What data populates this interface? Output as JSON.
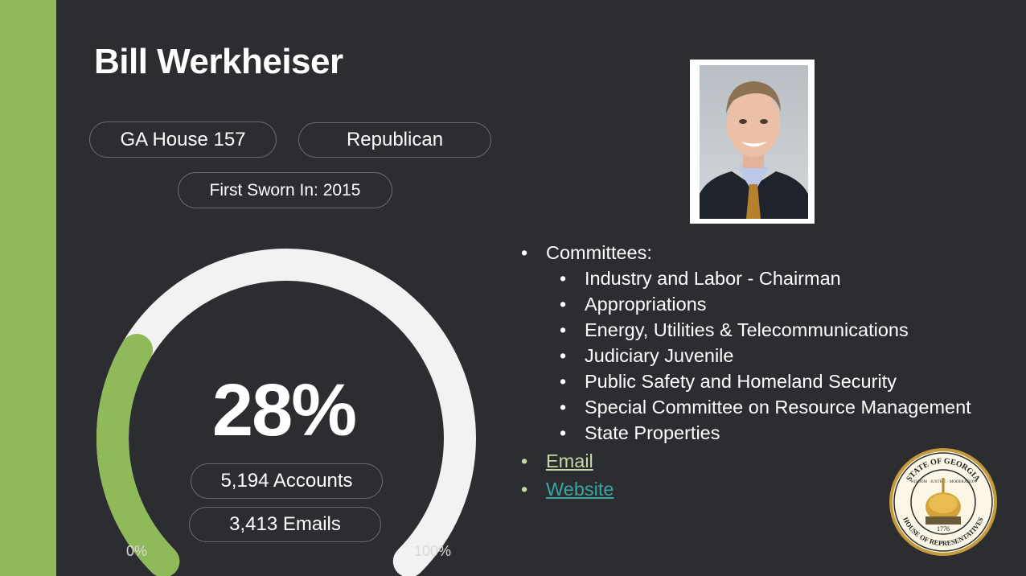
{
  "legislator": {
    "name": "Bill Werkheiser",
    "district": "GA House 157",
    "party": "Republican",
    "first_sworn": "First Sworn In: 2015"
  },
  "gauge": {
    "percent_label": "28%",
    "fraction": 0.28,
    "accounts": "5,194 Accounts",
    "emails": "3,413 Emails",
    "min_label": "0%",
    "max_label": "100%"
  },
  "info": {
    "committees_label": "Committees:",
    "committees": [
      "Industry and Labor - Chairman",
      "Appropriations",
      "Energy, Utilities & Telecommunications",
      "Judiciary Juvenile",
      "Public Safety and Homeland Security",
      "Special Committee on Resource Management",
      "State Properties"
    ],
    "email_link": "Email",
    "website_link": "Website"
  },
  "seal": {
    "top_text": "STATE OF GEORGIA",
    "bottom_text": "HOUSE OF REPRESENTATIVES",
    "motto": "WISDOM · JUSTICE · MODERATION",
    "year": "1776"
  },
  "colors": {
    "background": "#2c2d31",
    "accent_green": "#8fba59",
    "gauge_track": "#f2f2f2",
    "link_email": "#c8d9a8",
    "link_website": "#3aa6a1"
  },
  "icons": [
    "portrait-photo",
    "georgia-house-seal"
  ]
}
